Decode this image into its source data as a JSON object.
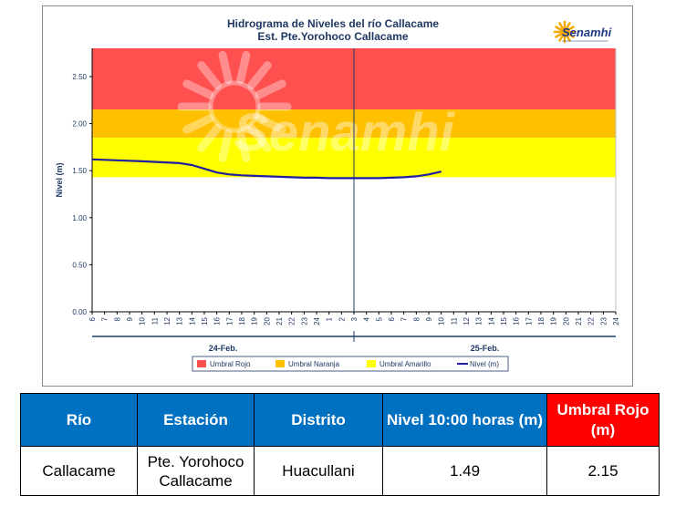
{
  "chart_data": {
    "type": "line",
    "title": "Hidrograma de Niveles del río Callacame",
    "subtitle": "Est. Pte.Yorohoco Callacame",
    "ylabel": "Nivel (m)",
    "xlabel": "",
    "ylim": [
      0,
      2.8
    ],
    "y_ticks": [
      "0.00",
      "0.50",
      "1.00",
      "1.50",
      "2.00",
      "2.50"
    ],
    "x_tick_labels": [
      "6",
      "7",
      "8",
      "9",
      "10",
      "11",
      "12",
      "13",
      "14",
      "15",
      "16",
      "17",
      "18",
      "19",
      "20",
      "21",
      "22",
      "23",
      "24",
      "1",
      "2",
      "3",
      "4",
      "5",
      "6",
      "7",
      "8",
      "9",
      "10",
      "11",
      "12",
      "13",
      "14",
      "15",
      "16",
      "17",
      "18",
      "19",
      "20",
      "21",
      "22",
      "23",
      "24"
    ],
    "day_labels": [
      "24-Feb.",
      "25-Feb."
    ],
    "grid": false,
    "legend_position": "bottom",
    "watermark": "Senamhi",
    "logo_text": "Senamhi",
    "bands": [
      {
        "name": "Umbral Rojo",
        "from": 2.15,
        "to": 2.8,
        "color": "#ff5050"
      },
      {
        "name": "Umbral Naranja",
        "from": 1.85,
        "to": 2.15,
        "color": "#ffc000"
      },
      {
        "name": "Umbral Amarillo",
        "from": 1.43,
        "to": 1.85,
        "color": "#ffff00"
      }
    ],
    "series": [
      {
        "name": "Nivel (m)",
        "color": "#1f1f9f",
        "x": [
          0,
          4,
          7,
          8,
          9,
          10,
          11,
          12,
          13,
          14,
          15,
          16,
          17,
          18,
          19,
          20,
          21,
          22,
          23,
          24,
          25,
          26,
          27,
          28
        ],
        "y": [
          1.62,
          1.6,
          1.58,
          1.56,
          1.52,
          1.48,
          1.46,
          1.45,
          1.445,
          1.44,
          1.435,
          1.43,
          1.425,
          1.425,
          1.42,
          1.42,
          1.42,
          1.42,
          1.42,
          1.425,
          1.43,
          1.44,
          1.46,
          1.49
        ]
      }
    ],
    "current_time_index": 21
  },
  "table": {
    "headers": [
      "Río",
      "Estación",
      "Distrito",
      "Nivel 10:00 horas (m)",
      "Umbral Rojo (m)"
    ],
    "row": [
      "Callacame",
      "Pte. Yorohoco Callacame",
      "Huacullani",
      "1.49",
      "2.15"
    ]
  }
}
